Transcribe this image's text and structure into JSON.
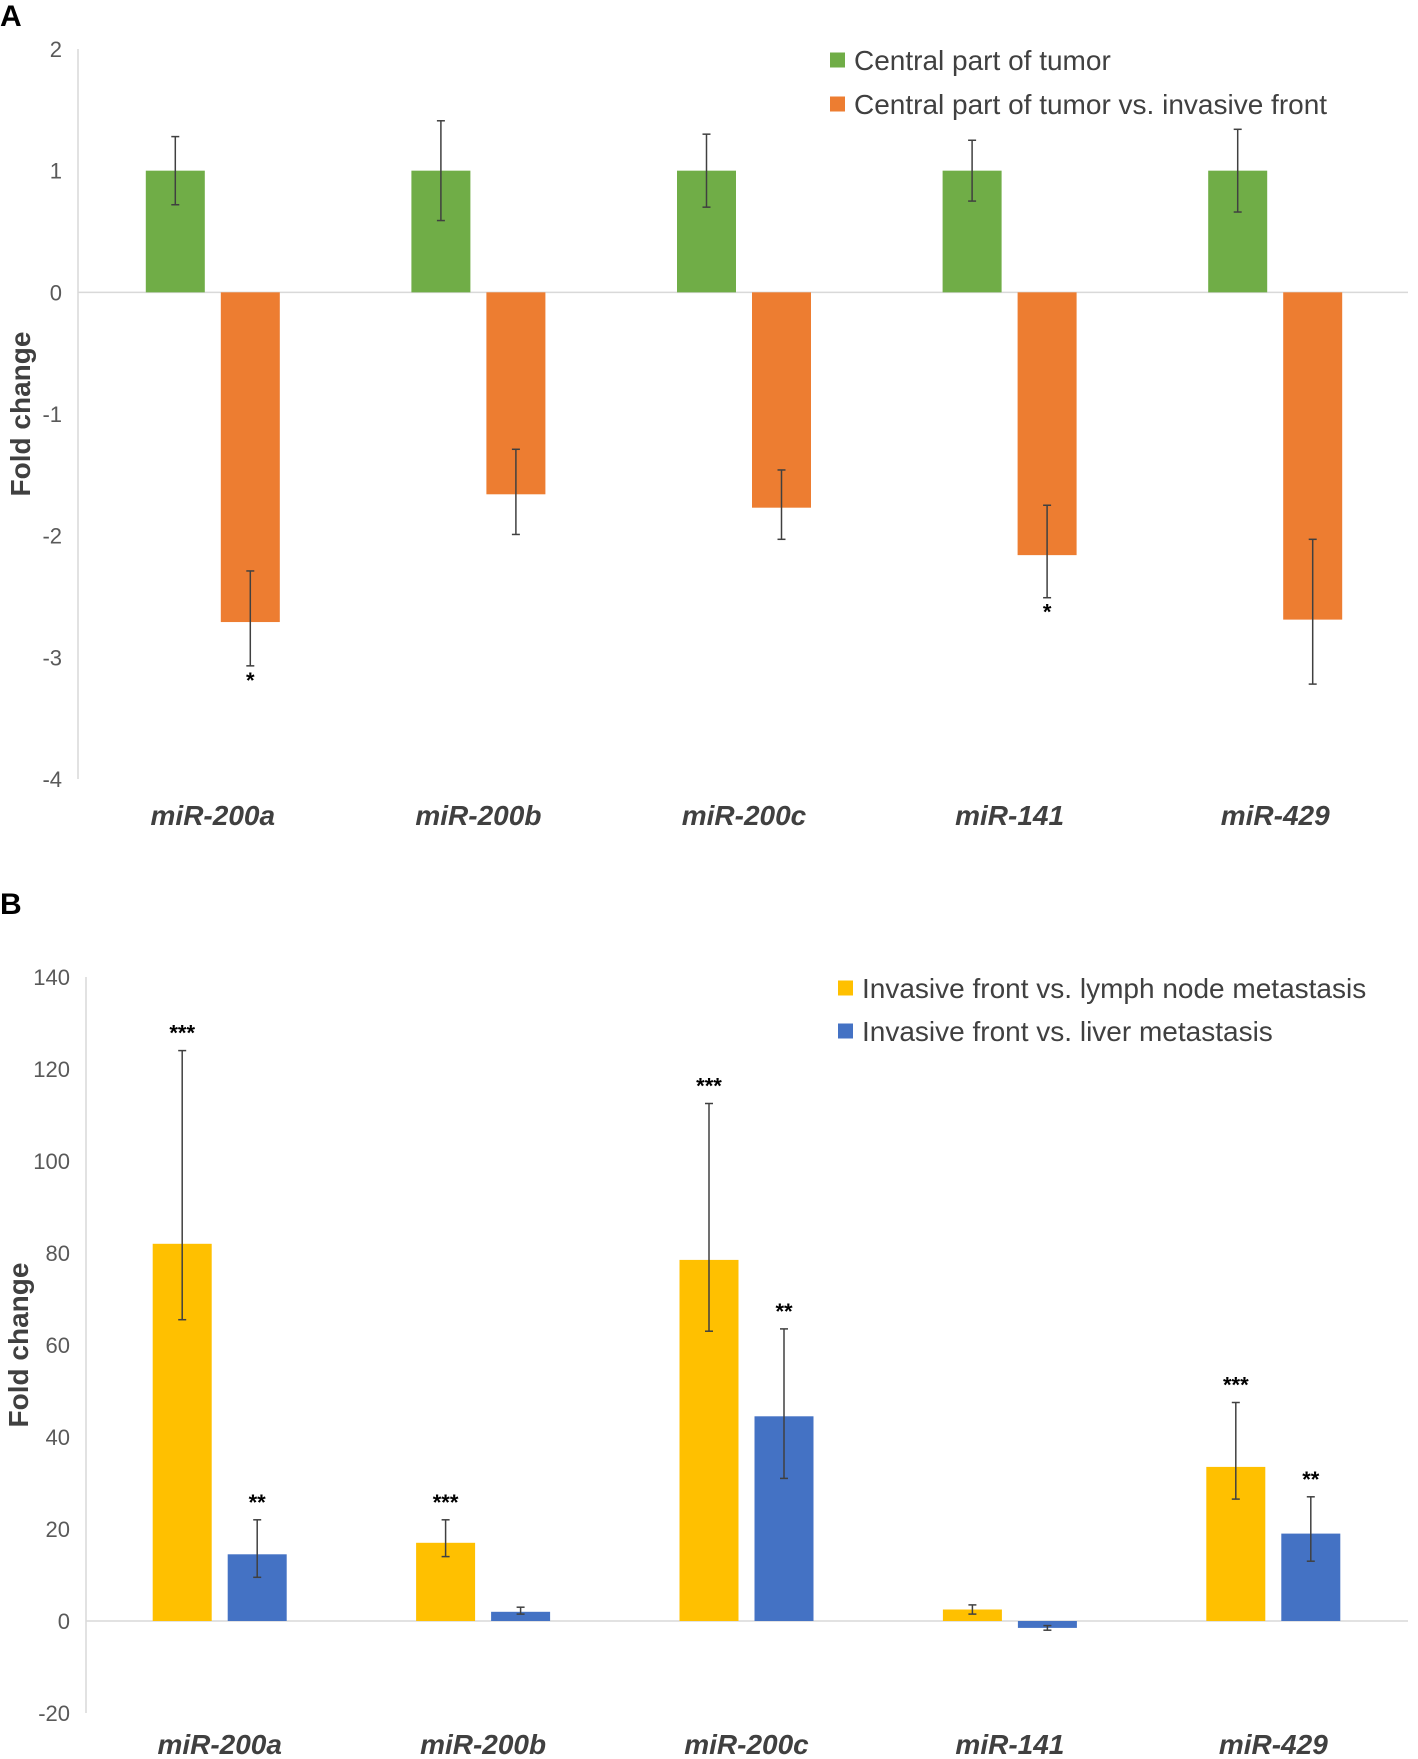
{
  "chart_data": [
    {
      "panel": "A",
      "type": "bar",
      "title": "",
      "xlabel": "",
      "ylabel": "Fold change",
      "ylim": [
        -4,
        2
      ],
      "yticks": [
        2,
        1,
        0,
        -1,
        -2,
        -3,
        -4
      ],
      "categories": [
        "miR-200a",
        "miR-200b",
        "miR-200c",
        "miR-141",
        "miR-429"
      ],
      "legend_position": "top-right",
      "series": [
        {
          "name": "Central part of tumor",
          "color": "#70AD47",
          "values": [
            1,
            1,
            1,
            1,
            1
          ],
          "err_high": [
            1.28,
            1.41,
            1.3,
            1.25,
            1.34
          ],
          "err_low": [
            0.72,
            0.59,
            0.7,
            0.75,
            0.66
          ],
          "significance": [
            "",
            "",
            "",
            "",
            ""
          ]
        },
        {
          "name": "Central part of tumor vs. invasive front",
          "color": "#ED7D31",
          "values": [
            -2.71,
            -1.66,
            -1.77,
            -2.16,
            -2.69
          ],
          "err_high": [
            -2.29,
            -1.29,
            -1.46,
            -1.75,
            -2.03
          ],
          "err_low": [
            -3.07,
            -1.99,
            -2.03,
            -2.51,
            -3.22
          ],
          "significance": [
            "*",
            "",
            "",
            "*",
            ""
          ]
        }
      ]
    },
    {
      "panel": "B",
      "type": "bar",
      "title": "",
      "xlabel": "",
      "ylabel": "Fold change",
      "ylim": [
        -20,
        140
      ],
      "yticks": [
        140,
        120,
        100,
        80,
        60,
        40,
        20,
        0,
        -20
      ],
      "categories": [
        "miR-200a",
        "miR-200b",
        "miR-200c",
        "miR-141",
        "miR-429"
      ],
      "legend_position": "top-right",
      "series": [
        {
          "name": "Invasive front vs. lymph node metastasis",
          "color": "#FFC000",
          "values": [
            82,
            17,
            78.5,
            2.5,
            33.5
          ],
          "err_high": [
            124,
            22,
            112.5,
            3.5,
            47.5
          ],
          "err_low": [
            65.5,
            14,
            63,
            1.5,
            26.5
          ],
          "significance": [
            "***",
            "***",
            "***",
            "",
            "***"
          ]
        },
        {
          "name": "Invasive front vs. liver metastasis",
          "color": "#4472C4",
          "values": [
            14.5,
            2,
            44.5,
            -1.5,
            19
          ],
          "err_high": [
            22,
            3,
            63.5,
            -1,
            27
          ],
          "err_low": [
            9.5,
            1.5,
            31,
            -2,
            13
          ],
          "significance": [
            "**",
            "",
            "**",
            "",
            "**"
          ]
        }
      ]
    }
  ]
}
